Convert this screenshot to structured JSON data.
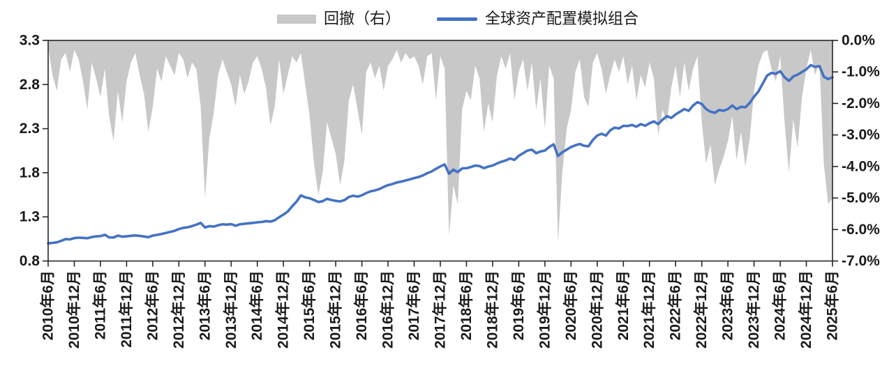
{
  "legend": {
    "drawdown": {
      "label": "回撤（右）",
      "color": "#C8C8C8"
    },
    "portfolio": {
      "label": "全球资产配置模拟组合",
      "color": "#4472C4"
    }
  },
  "colors": {
    "frame": "#262626",
    "text": "#1a1a1a",
    "background": "#ffffff"
  },
  "chart_data": {
    "type": "line+area",
    "title": "",
    "legend_position": "top-center",
    "grid": false,
    "series": [
      {
        "name": "全球资产配置模拟组合",
        "type": "line",
        "axis": "left",
        "color": "#4472C4"
      },
      {
        "name": "回撤（右）",
        "type": "area",
        "axis": "right",
        "color": "#C8C8C8"
      }
    ],
    "left_axis": {
      "min": 0.8,
      "max": 3.3,
      "ticks": [
        3.3,
        2.8,
        2.3,
        1.8,
        1.3,
        0.8
      ]
    },
    "right_axis": {
      "min": -7.0,
      "max": 0.0,
      "tick_labels": [
        "0.0%",
        "-1.0%",
        "-2.0%",
        "-3.0%",
        "-4.0%",
        "-5.0%",
        "-6.0%",
        "-7.0%"
      ]
    },
    "x_tick_labels": [
      "2010年6月",
      "2010年12月",
      "2011年6月",
      "2011年12月",
      "2012年6月",
      "2012年12月",
      "2013年6月",
      "2013年12月",
      "2014年6月",
      "2014年12月",
      "2015年6月",
      "2015年12月",
      "2016年6月",
      "2016年12月",
      "2017年6月",
      "2017年12月",
      "2018年6月",
      "2018年12月",
      "2019年6月",
      "2019年12月",
      "2020年6月",
      "2020年12月",
      "2021年6月",
      "2021年12月",
      "2022年6月",
      "2022年12月",
      "2023年6月",
      "2023年12月",
      "2024年6月",
      "2024年12月",
      "2025年6月"
    ],
    "columns": [
      "month",
      "nav",
      "drawdown_pct"
    ],
    "rows": [
      [
        "2010-06",
        1.0,
        -0.2
      ],
      [
        "2010-07",
        1.005,
        -1.1
      ],
      [
        "2010-08",
        1.012,
        -1.6
      ],
      [
        "2010-09",
        1.028,
        -0.6
      ],
      [
        "2010-10",
        1.048,
        -0.4
      ],
      [
        "2010-11",
        1.045,
        -1.0
      ],
      [
        "2010-12",
        1.06,
        -0.3
      ],
      [
        "2011-01",
        1.065,
        -0.6
      ],
      [
        "2011-02",
        1.062,
        -1.3
      ],
      [
        "2011-03",
        1.058,
        -2.2
      ],
      [
        "2011-04",
        1.072,
        -0.7
      ],
      [
        "2011-05",
        1.08,
        -1.2
      ],
      [
        "2011-06",
        1.082,
        -1.8
      ],
      [
        "2011-07",
        1.098,
        -0.9
      ],
      [
        "2011-08",
        1.068,
        -2.4
      ],
      [
        "2011-09",
        1.066,
        -3.2
      ],
      [
        "2011-10",
        1.088,
        -1.6
      ],
      [
        "2011-11",
        1.076,
        -2.6
      ],
      [
        "2011-12",
        1.08,
        -1.3
      ],
      [
        "2012-01",
        1.086,
        -0.7
      ],
      [
        "2012-02",
        1.09,
        -0.4
      ],
      [
        "2012-03",
        1.085,
        -1.1
      ],
      [
        "2012-04",
        1.078,
        -1.7
      ],
      [
        "2012-05",
        1.07,
        -2.9
      ],
      [
        "2012-06",
        1.088,
        -2.1
      ],
      [
        "2012-07",
        1.096,
        -0.9
      ],
      [
        "2012-08",
        1.106,
        -1.3
      ],
      [
        "2012-09",
        1.118,
        -0.5
      ],
      [
        "2012-10",
        1.13,
        -0.8
      ],
      [
        "2012-11",
        1.142,
        -1.1
      ],
      [
        "2012-12",
        1.162,
        -0.4
      ],
      [
        "2013-01",
        1.176,
        -0.6
      ],
      [
        "2013-02",
        1.182,
        -1.2
      ],
      [
        "2013-03",
        1.196,
        -0.7
      ],
      [
        "2013-04",
        1.212,
        -0.9
      ],
      [
        "2013-05",
        1.232,
        -2.1
      ],
      [
        "2013-06",
        1.18,
        -5.0
      ],
      [
        "2013-07",
        1.196,
        -3.1
      ],
      [
        "2013-08",
        1.19,
        -2.3
      ],
      [
        "2013-09",
        1.205,
        -1.1
      ],
      [
        "2013-10",
        1.216,
        -0.6
      ],
      [
        "2013-11",
        1.212,
        -1.0
      ],
      [
        "2013-12",
        1.218,
        -1.4
      ],
      [
        "2014-01",
        1.2,
        -2.1
      ],
      [
        "2014-02",
        1.216,
        -1.1
      ],
      [
        "2014-03",
        1.222,
        -1.7
      ],
      [
        "2014-04",
        1.227,
        -1.3
      ],
      [
        "2014-05",
        1.232,
        -0.7
      ],
      [
        "2014-06",
        1.238,
        -0.5
      ],
      [
        "2014-07",
        1.242,
        -0.9
      ],
      [
        "2014-08",
        1.252,
        -1.5
      ],
      [
        "2014-09",
        1.246,
        -2.7
      ],
      [
        "2014-10",
        1.262,
        -2.1
      ],
      [
        "2014-11",
        1.296,
        -0.6
      ],
      [
        "2014-12",
        1.326,
        -1.7
      ],
      [
        "2015-01",
        1.362,
        -1.1
      ],
      [
        "2015-02",
        1.42,
        -0.5
      ],
      [
        "2015-03",
        1.472,
        -0.7
      ],
      [
        "2015-04",
        1.544,
        -0.4
      ],
      [
        "2015-05",
        1.522,
        -1.4
      ],
      [
        "2015-06",
        1.512,
        -2.4
      ],
      [
        "2015-07",
        1.492,
        -3.9
      ],
      [
        "2015-08",
        1.468,
        -4.9
      ],
      [
        "2015-09",
        1.478,
        -4.2
      ],
      [
        "2015-10",
        1.505,
        -2.6
      ],
      [
        "2015-11",
        1.492,
        -3.1
      ],
      [
        "2015-12",
        1.482,
        -3.6
      ],
      [
        "2016-01",
        1.475,
        -4.6
      ],
      [
        "2016-02",
        1.49,
        -3.8
      ],
      [
        "2016-03",
        1.525,
        -1.9
      ],
      [
        "2016-04",
        1.54,
        -1.4
      ],
      [
        "2016-05",
        1.53,
        -2.2
      ],
      [
        "2016-06",
        1.545,
        -3.0
      ],
      [
        "2016-07",
        1.57,
        -1.0
      ],
      [
        "2016-08",
        1.59,
        -0.7
      ],
      [
        "2016-09",
        1.6,
        -1.2
      ],
      [
        "2016-10",
        1.615,
        -0.8
      ],
      [
        "2016-11",
        1.64,
        -1.6
      ],
      [
        "2016-12",
        1.66,
        -0.8
      ],
      [
        "2017-01",
        1.672,
        -0.6
      ],
      [
        "2017-02",
        1.69,
        -0.3
      ],
      [
        "2017-03",
        1.7,
        -0.7
      ],
      [
        "2017-04",
        1.712,
        -0.4
      ],
      [
        "2017-05",
        1.725,
        -0.6
      ],
      [
        "2017-06",
        1.74,
        -0.5
      ],
      [
        "2017-07",
        1.752,
        -0.8
      ],
      [
        "2017-08",
        1.77,
        -1.4
      ],
      [
        "2017-09",
        1.795,
        -0.5
      ],
      [
        "2017-10",
        1.815,
        -0.4
      ],
      [
        "2017-11",
        1.845,
        -1.9
      ],
      [
        "2017-12",
        1.872,
        -0.5
      ],
      [
        "2018-01",
        1.895,
        -0.9
      ],
      [
        "2018-02",
        1.79,
        -6.2
      ],
      [
        "2018-03",
        1.835,
        -4.6
      ],
      [
        "2018-04",
        1.808,
        -5.2
      ],
      [
        "2018-05",
        1.85,
        -2.2
      ],
      [
        "2018-06",
        1.852,
        -1.6
      ],
      [
        "2018-07",
        1.865,
        -1.9
      ],
      [
        "2018-08",
        1.882,
        -0.8
      ],
      [
        "2018-09",
        1.876,
        -1.2
      ],
      [
        "2018-10",
        1.852,
        -2.9
      ],
      [
        "2018-11",
        1.87,
        -2.0
      ],
      [
        "2018-12",
        1.882,
        -2.6
      ],
      [
        "2019-01",
        1.905,
        -1.1
      ],
      [
        "2019-02",
        1.925,
        -0.5
      ],
      [
        "2019-03",
        1.94,
        -0.9
      ],
      [
        "2019-04",
        1.962,
        -0.4
      ],
      [
        "2019-05",
        1.946,
        -1.9
      ],
      [
        "2019-06",
        1.992,
        -1.0
      ],
      [
        "2019-07",
        2.022,
        -0.6
      ],
      [
        "2019-08",
        2.052,
        -1.6
      ],
      [
        "2019-09",
        2.062,
        -0.7
      ],
      [
        "2019-10",
        2.022,
        -2.2
      ],
      [
        "2019-11",
        2.042,
        -1.2
      ],
      [
        "2019-12",
        2.052,
        -2.8
      ],
      [
        "2020-01",
        2.092,
        -0.8
      ],
      [
        "2020-02",
        2.122,
        -1.2
      ],
      [
        "2020-03",
        1.99,
        -6.4
      ],
      [
        "2020-04",
        2.032,
        -4.2
      ],
      [
        "2020-05",
        2.062,
        -2.8
      ],
      [
        "2020-06",
        2.092,
        -2.2
      ],
      [
        "2020-07",
        2.112,
        -1.0
      ],
      [
        "2020-08",
        2.126,
        -0.6
      ],
      [
        "2020-09",
        2.106,
        -1.8
      ],
      [
        "2020-10",
        2.1,
        -2.1
      ],
      [
        "2020-11",
        2.172,
        -0.7
      ],
      [
        "2020-12",
        2.222,
        -0.4
      ],
      [
        "2021-01",
        2.242,
        -0.9
      ],
      [
        "2021-02",
        2.222,
        -1.7
      ],
      [
        "2021-03",
        2.282,
        -1.1
      ],
      [
        "2021-04",
        2.312,
        -0.6
      ],
      [
        "2021-05",
        2.302,
        -1.0
      ],
      [
        "2021-06",
        2.332,
        -0.5
      ],
      [
        "2021-07",
        2.33,
        -1.4
      ],
      [
        "2021-08",
        2.342,
        -0.8
      ],
      [
        "2021-09",
        2.322,
        -1.9
      ],
      [
        "2021-10",
        2.352,
        -1.1
      ],
      [
        "2021-11",
        2.332,
        -1.5
      ],
      [
        "2021-12",
        2.362,
        -0.7
      ],
      [
        "2022-01",
        2.382,
        -1.2
      ],
      [
        "2022-02",
        2.352,
        -3.0
      ],
      [
        "2022-03",
        2.402,
        -2.2
      ],
      [
        "2022-04",
        2.442,
        -2.6
      ],
      [
        "2022-05",
        2.422,
        -1.5
      ],
      [
        "2022-06",
        2.462,
        -0.8
      ],
      [
        "2022-07",
        2.492,
        -1.8
      ],
      [
        "2022-08",
        2.522,
        -0.7
      ],
      [
        "2022-09",
        2.502,
        -1.6
      ],
      [
        "2022-10",
        2.562,
        -0.9
      ],
      [
        "2022-11",
        2.6,
        -0.5
      ],
      [
        "2022-12",
        2.58,
        -2.6
      ],
      [
        "2023-01",
        2.522,
        -3.9
      ],
      [
        "2023-02",
        2.492,
        -3.3
      ],
      [
        "2023-03",
        2.48,
        -4.6
      ],
      [
        "2023-04",
        2.512,
        -4.1
      ],
      [
        "2023-05",
        2.502,
        -3.7
      ],
      [
        "2023-06",
        2.522,
        -3.2
      ],
      [
        "2023-07",
        2.562,
        -2.4
      ],
      [
        "2023-08",
        2.522,
        -3.8
      ],
      [
        "2023-09",
        2.548,
        -2.9
      ],
      [
        "2023-10",
        2.542,
        -4.0
      ],
      [
        "2023-11",
        2.592,
        -3.1
      ],
      [
        "2023-12",
        2.662,
        -1.6
      ],
      [
        "2024-01",
        2.722,
        -0.8
      ],
      [
        "2024-02",
        2.812,
        -0.4
      ],
      [
        "2024-03",
        2.902,
        -0.3
      ],
      [
        "2024-04",
        2.932,
        -0.9
      ],
      [
        "2024-05",
        2.922,
        -1.3
      ],
      [
        "2024-06",
        2.952,
        -0.5
      ],
      [
        "2024-07",
        2.882,
        -2.6
      ],
      [
        "2024-08",
        2.842,
        -4.2
      ],
      [
        "2024-09",
        2.892,
        -2.5
      ],
      [
        "2024-10",
        2.912,
        -3.4
      ],
      [
        "2024-11",
        2.942,
        -1.8
      ],
      [
        "2024-12",
        2.972,
        -0.9
      ],
      [
        "2025-01",
        3.02,
        -0.3
      ],
      [
        "2025-02",
        3.0,
        -1.1
      ],
      [
        "2025-03",
        3.01,
        -0.7
      ],
      [
        "2025-04",
        2.89,
        -3.9
      ],
      [
        "2025-05",
        2.862,
        -5.2
      ],
      [
        "2025-06",
        2.882,
        -5.0
      ]
    ]
  }
}
